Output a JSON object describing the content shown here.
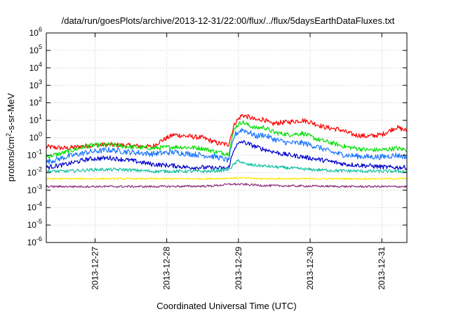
{
  "chart_data": {
    "type": "line",
    "title": "/data/run/goesPlots/archive/2013-12-31/22:00/flux/../flux/5daysEarthDataFluxes.txt",
    "xlabel": "Coordinated Universal Time (UTC)",
    "ylabel_base": "protons/cm",
    "ylabel_exp": "2",
    "ylabel_tail": "-s-sr-MeV",
    "x_ticks": [
      "2013-12-27",
      "2013-12-28",
      "2013-12-29",
      "2013-12-30",
      "2013-12-31"
    ],
    "xlim_days": [
      -0.68,
      4.35
    ],
    "y_scale": "log",
    "ylim_exp": [
      -6,
      6
    ],
    "y_tick_base": "10",
    "y_tick_exps": [
      "-6",
      "-5",
      "-4",
      "-3",
      "-2",
      "-1",
      "0",
      "1",
      "2",
      "3",
      "4",
      "5",
      "6"
    ],
    "grid": true,
    "series": [
      {
        "color": "#ff0000",
        "x": [
          -0.68,
          -0.4,
          -0.1,
          0.2,
          0.5,
          0.8,
          0.9,
          1.1,
          1.3,
          1.5,
          1.7,
          1.86,
          1.95,
          2.05,
          2.15,
          2.25,
          2.35,
          2.45,
          2.55,
          2.7,
          2.9,
          3.0,
          3.2,
          3.4,
          3.6,
          3.8,
          4.0,
          4.2,
          4.35
        ],
        "y": [
          0.3,
          0.25,
          0.35,
          0.4,
          0.35,
          0.3,
          0.6,
          1.5,
          1.2,
          1.0,
          0.5,
          0.4,
          7,
          20,
          15,
          10,
          12,
          6,
          7,
          8,
          10,
          8,
          4,
          3,
          1.5,
          1.2,
          1.5,
          4,
          2.5
        ]
      },
      {
        "color": "#00e000",
        "x": [
          -0.68,
          -0.4,
          -0.1,
          0.2,
          0.5,
          0.8,
          1.1,
          1.3,
          1.5,
          1.7,
          1.86,
          1.95,
          2.05,
          2.15,
          2.25,
          2.35,
          2.5,
          2.7,
          2.9,
          3.1,
          3.3,
          3.5,
          3.8,
          4.0,
          4.2,
          4.35
        ],
        "y": [
          0.08,
          0.15,
          0.35,
          0.4,
          0.3,
          0.25,
          0.3,
          0.28,
          0.25,
          0.15,
          0.12,
          4,
          8,
          5,
          3.5,
          4,
          2,
          1.5,
          1.8,
          0.8,
          0.5,
          0.3,
          0.2,
          0.2,
          0.25,
          0.2
        ]
      },
      {
        "color": "#1e78ff",
        "x": [
          -0.68,
          -0.4,
          -0.1,
          0.2,
          0.5,
          0.8,
          1.1,
          1.3,
          1.5,
          1.7,
          1.86,
          1.95,
          2.05,
          2.15,
          2.25,
          2.35,
          2.5,
          2.7,
          2.9,
          3.1,
          3.3,
          3.5,
          3.8,
          4.0,
          4.2,
          4.35
        ],
        "y": [
          0.04,
          0.08,
          0.15,
          0.2,
          0.15,
          0.12,
          0.15,
          0.12,
          0.1,
          0.08,
          0.05,
          1.5,
          3,
          2,
          1.2,
          1.5,
          0.8,
          0.5,
          0.5,
          0.3,
          0.15,
          0.1,
          0.08,
          0.08,
          0.1,
          0.08
        ]
      },
      {
        "color": "#0000cc",
        "x": [
          -0.68,
          -0.4,
          -0.1,
          0.2,
          0.5,
          0.8,
          1.1,
          1.3,
          1.5,
          1.7,
          1.86,
          1.95,
          2.05,
          2.3,
          2.6,
          2.9,
          3.2,
          3.5,
          3.8,
          4.1,
          4.35
        ],
        "y": [
          0.02,
          0.03,
          0.06,
          0.07,
          0.05,
          0.03,
          0.025,
          0.02,
          0.02,
          0.018,
          0.018,
          0.3,
          0.6,
          0.25,
          0.12,
          0.08,
          0.05,
          0.03,
          0.025,
          0.02,
          0.02
        ]
      },
      {
        "color": "#10c0a0",
        "x": [
          -0.68,
          -0.4,
          0.0,
          0.4,
          0.8,
          1.2,
          1.6,
          1.86,
          2.0,
          2.1,
          2.3,
          2.6,
          3.0,
          3.4,
          3.8,
          4.35
        ],
        "y": [
          0.012,
          0.012,
          0.015,
          0.015,
          0.012,
          0.012,
          0.012,
          0.015,
          0.05,
          0.03,
          0.025,
          0.02,
          0.015,
          0.013,
          0.012,
          0.012
        ]
      },
      {
        "color": "#ffe400",
        "x": [
          -0.68,
          0.0,
          0.8,
          1.6,
          2.0,
          2.3,
          3.0,
          3.6,
          4.35
        ],
        "y": [
          0.0045,
          0.0045,
          0.0045,
          0.0045,
          0.005,
          0.0045,
          0.0045,
          0.0045,
          0.0045
        ]
      },
      {
        "color": "#8b2a7a",
        "x": [
          -0.68,
          0.0,
          0.8,
          1.6,
          1.9,
          2.1,
          2.4,
          3.0,
          3.6,
          4.35
        ],
        "y": [
          0.0016,
          0.0016,
          0.0016,
          0.0017,
          0.0022,
          0.0021,
          0.0018,
          0.0017,
          0.0016,
          0.0016
        ]
      }
    ]
  }
}
